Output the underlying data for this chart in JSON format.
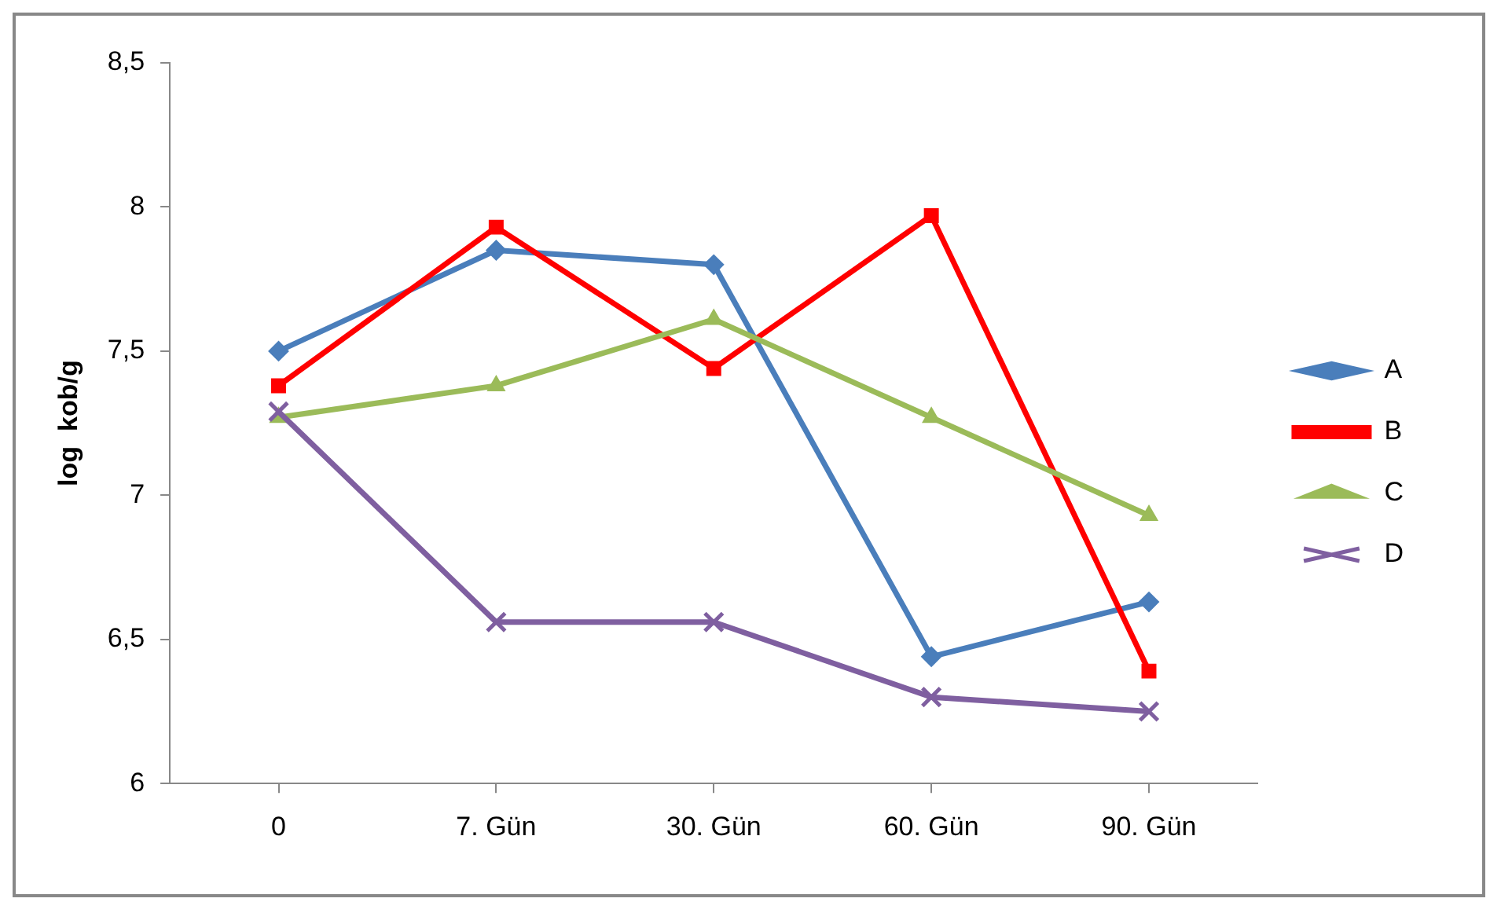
{
  "chart_data": {
    "type": "line",
    "ylabel": "log  kob/g",
    "categories": [
      "0",
      "7. Gün",
      "30. Gün",
      "60. Gün",
      "90. Gün"
    ],
    "series": [
      {
        "name": "A",
        "color": "#4a7ebb",
        "marker": "diamond",
        "values": [
          7.5,
          7.85,
          7.8,
          6.44,
          6.63
        ]
      },
      {
        "name": "B",
        "color": "#ff0000",
        "marker": "square",
        "values": [
          7.38,
          7.93,
          7.44,
          7.97,
          6.39
        ]
      },
      {
        "name": "C",
        "color": "#9bbb59",
        "marker": "triangle",
        "values": [
          7.27,
          7.38,
          7.61,
          7.27,
          6.93
        ]
      },
      {
        "name": "D",
        "color": "#7f5fa0",
        "marker": "cross",
        "values": [
          7.29,
          6.56,
          6.56,
          6.3,
          6.25
        ]
      }
    ],
    "ylim": [
      6,
      8.5
    ],
    "yticks": [
      6,
      {
        "value": 6.5,
        "label": "6,5"
      },
      7,
      {
        "value": 7.5,
        "label": "7,5"
      },
      8,
      {
        "value": 8.5,
        "label": "8,5"
      }
    ],
    "grid": false,
    "legend": "right",
    "line_style": "solid"
  }
}
